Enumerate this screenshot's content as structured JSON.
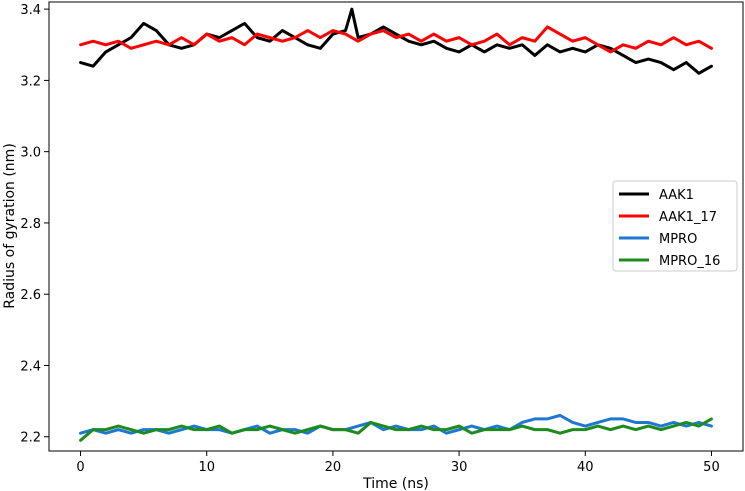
{
  "chart_data": {
    "type": "line",
    "title": "",
    "xlabel": "Time (ns)",
    "ylabel": "Radius of gyration (nm)",
    "xlim": [
      -2.5,
      52.5
    ],
    "ylim": [
      2.16,
      3.42
    ],
    "xticks": [
      0,
      10,
      20,
      30,
      40,
      50
    ],
    "xtick_labels": [
      "0",
      "10",
      "20",
      "30",
      "40",
      "50"
    ],
    "yticks": [
      2.2,
      2.4,
      2.6,
      2.8,
      3.0,
      3.2,
      3.4
    ],
    "ytick_labels": [
      "2.2",
      "2.4",
      "2.6",
      "2.8",
      "3.0",
      "3.2",
      "3.4"
    ],
    "grid": false,
    "legend_position": "right",
    "series": [
      {
        "name": "AAK1",
        "color": "#000000",
        "x": [
          0,
          1,
          2,
          3,
          4,
          5,
          6,
          7,
          8,
          9,
          10,
          11,
          12,
          13,
          14,
          15,
          16,
          17,
          18,
          19,
          20,
          21,
          21.5,
          22,
          23,
          24,
          25,
          26,
          27,
          28,
          29,
          30,
          31,
          32,
          33,
          34,
          35,
          36,
          37,
          38,
          39,
          40,
          41,
          42,
          43,
          44,
          45,
          46,
          47,
          48,
          49,
          50
        ],
        "y": [
          3.25,
          3.24,
          3.28,
          3.3,
          3.32,
          3.36,
          3.34,
          3.3,
          3.29,
          3.3,
          3.33,
          3.32,
          3.34,
          3.36,
          3.32,
          3.31,
          3.34,
          3.32,
          3.3,
          3.29,
          3.33,
          3.34,
          3.4,
          3.32,
          3.33,
          3.35,
          3.33,
          3.31,
          3.3,
          3.31,
          3.29,
          3.28,
          3.3,
          3.28,
          3.3,
          3.29,
          3.3,
          3.27,
          3.3,
          3.28,
          3.29,
          3.28,
          3.3,
          3.29,
          3.27,
          3.25,
          3.26,
          3.25,
          3.23,
          3.25,
          3.22,
          3.24
        ]
      },
      {
        "name": "AAK1_17",
        "color": "#ff0000",
        "x": [
          0,
          1,
          2,
          3,
          4,
          5,
          6,
          7,
          8,
          9,
          10,
          11,
          12,
          13,
          14,
          15,
          16,
          17,
          18,
          19,
          20,
          21,
          22,
          23,
          24,
          25,
          26,
          27,
          28,
          29,
          30,
          31,
          32,
          33,
          34,
          35,
          36,
          37,
          38,
          39,
          40,
          41,
          42,
          43,
          44,
          45,
          46,
          47,
          48,
          49,
          50
        ],
        "y": [
          3.3,
          3.31,
          3.3,
          3.31,
          3.29,
          3.3,
          3.31,
          3.3,
          3.32,
          3.3,
          3.33,
          3.31,
          3.32,
          3.3,
          3.33,
          3.32,
          3.31,
          3.32,
          3.34,
          3.32,
          3.34,
          3.33,
          3.31,
          3.33,
          3.34,
          3.32,
          3.33,
          3.31,
          3.33,
          3.31,
          3.32,
          3.3,
          3.31,
          3.33,
          3.3,
          3.32,
          3.31,
          3.35,
          3.33,
          3.31,
          3.32,
          3.3,
          3.28,
          3.3,
          3.29,
          3.31,
          3.3,
          3.32,
          3.3,
          3.31,
          3.29
        ]
      },
      {
        "name": "MPRO",
        "color": "#1f77d4",
        "x": [
          0,
          1,
          2,
          3,
          4,
          5,
          6,
          7,
          8,
          9,
          10,
          11,
          12,
          13,
          14,
          15,
          16,
          17,
          18,
          19,
          20,
          21,
          22,
          23,
          24,
          25,
          26,
          27,
          28,
          29,
          30,
          31,
          32,
          33,
          34,
          35,
          36,
          37,
          38,
          39,
          40,
          41,
          42,
          43,
          44,
          45,
          46,
          47,
          48,
          49,
          50
        ],
        "y": [
          2.21,
          2.22,
          2.21,
          2.22,
          2.21,
          2.22,
          2.22,
          2.21,
          2.22,
          2.23,
          2.22,
          2.22,
          2.21,
          2.22,
          2.23,
          2.21,
          2.22,
          2.22,
          2.21,
          2.23,
          2.22,
          2.22,
          2.23,
          2.24,
          2.22,
          2.23,
          2.22,
          2.22,
          2.23,
          2.21,
          2.22,
          2.23,
          2.22,
          2.23,
          2.22,
          2.24,
          2.25,
          2.25,
          2.26,
          2.24,
          2.23,
          2.24,
          2.25,
          2.25,
          2.24,
          2.24,
          2.23,
          2.24,
          2.23,
          2.24,
          2.23
        ]
      },
      {
        "name": "MPRO_16",
        "color": "#1e8b1e",
        "x": [
          0,
          1,
          2,
          3,
          4,
          5,
          6,
          7,
          8,
          9,
          10,
          11,
          12,
          13,
          14,
          15,
          16,
          17,
          18,
          19,
          20,
          21,
          22,
          23,
          24,
          25,
          26,
          27,
          28,
          29,
          30,
          31,
          32,
          33,
          34,
          35,
          36,
          37,
          38,
          39,
          40,
          41,
          42,
          43,
          44,
          45,
          46,
          47,
          48,
          49,
          50
        ],
        "y": [
          2.19,
          2.22,
          2.22,
          2.23,
          2.22,
          2.21,
          2.22,
          2.22,
          2.23,
          2.22,
          2.22,
          2.23,
          2.21,
          2.22,
          2.22,
          2.23,
          2.22,
          2.21,
          2.22,
          2.23,
          2.22,
          2.22,
          2.21,
          2.24,
          2.23,
          2.22,
          2.22,
          2.23,
          2.22,
          2.22,
          2.23,
          2.21,
          2.22,
          2.22,
          2.22,
          2.23,
          2.22,
          2.22,
          2.21,
          2.22,
          2.22,
          2.23,
          2.22,
          2.23,
          2.22,
          2.23,
          2.22,
          2.23,
          2.24,
          2.23,
          2.25
        ]
      }
    ]
  }
}
